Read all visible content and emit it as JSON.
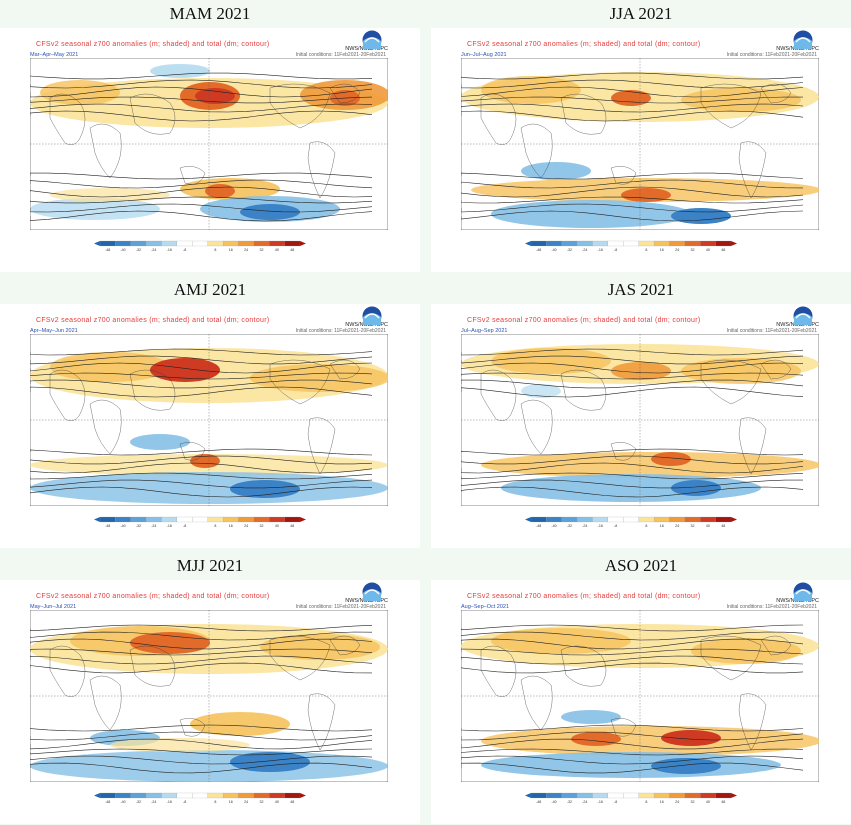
{
  "panels": [
    {
      "season_title": "MAM 2021",
      "months": "Mar–Apr–May 2021"
    },
    {
      "season_title": "JJA 2021",
      "months": "Jun–Jul–Aug 2021"
    },
    {
      "season_title": "AMJ 2021",
      "months": "Apr–May–Jun 2021"
    },
    {
      "season_title": "JAS 2021",
      "months": "Jul–Aug–Sep 2021"
    },
    {
      "season_title": "MJJ 2021",
      "months": "May–Jun–Jul 2021"
    },
    {
      "season_title": "ASO 2021",
      "months": "Aug–Sep–Oct 2021"
    }
  ],
  "plot_title": "CFSv2 seasonal z700 anomalies (m; shaded) and total (dm; contour)",
  "init_conditions": "Initial conditions: 11Feb2021-20Feb2021",
  "agency": "NWS/NCEP/CPC",
  "colorbar_ticks": [
    "-48",
    "-40",
    "-32",
    "-24",
    "-16",
    "-8",
    "8",
    "16",
    "24",
    "32",
    "40",
    "48"
  ],
  "colors": {
    "red": "#d73027",
    "orange": "#f4a640",
    "light_orange": "#fcd98a",
    "light_blue": "#a9d7ee",
    "blue": "#4f9bd8",
    "dark_blue": "#2166ac"
  }
}
